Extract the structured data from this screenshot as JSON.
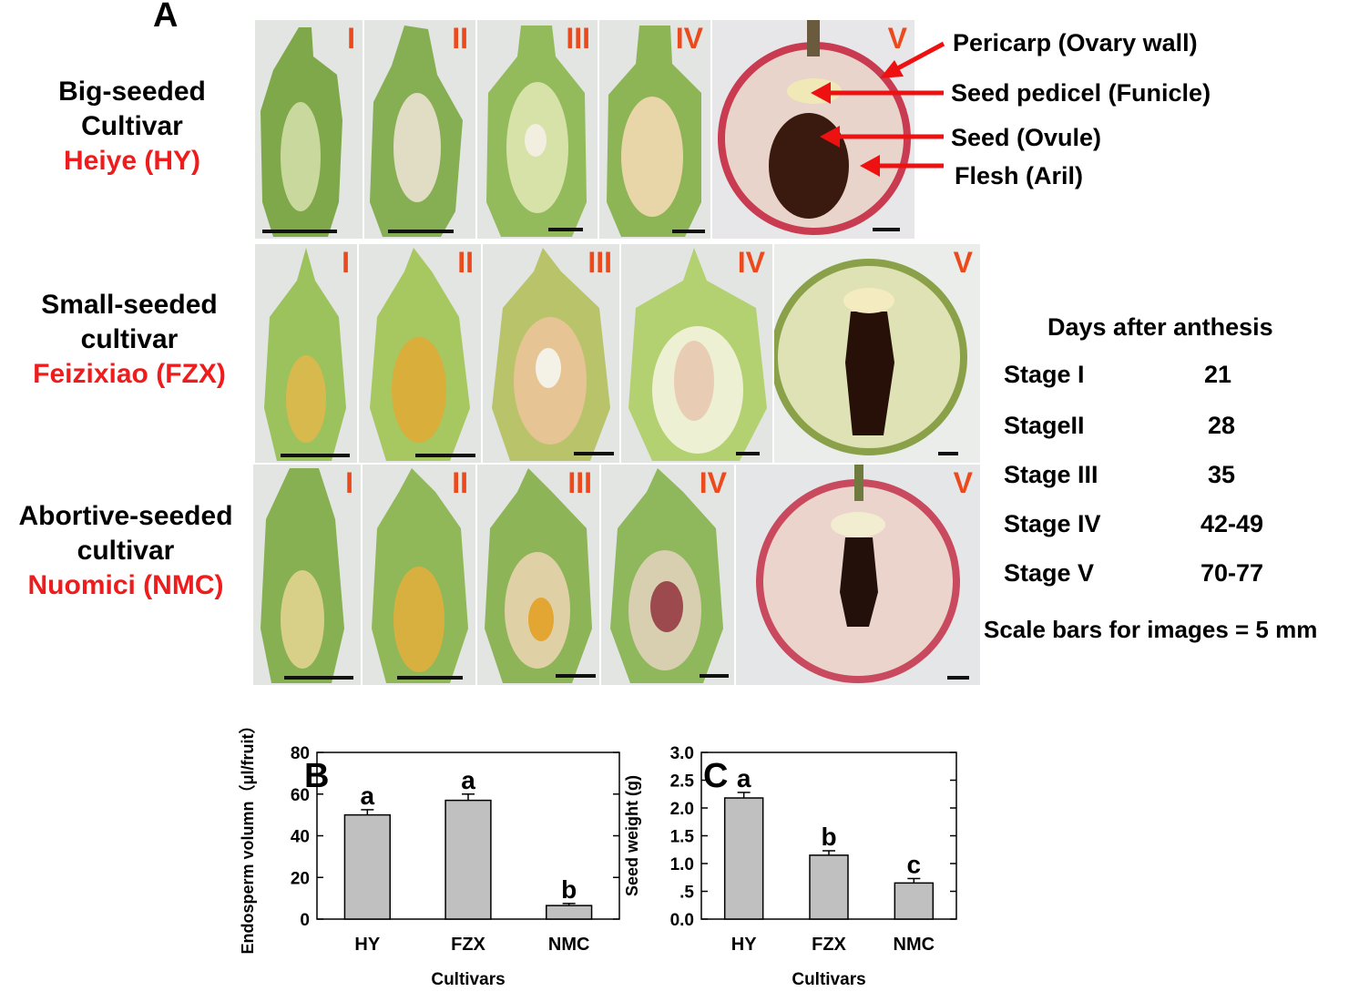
{
  "panel_a": {
    "label": "A",
    "rows": [
      {
        "line1": "Big-seeded",
        "line2": "Cultivar",
        "name": "Heiye (HY)"
      },
      {
        "line1": "Small-seeded",
        "line2": "cultivar",
        "name": "Feizixiao (FZX)"
      },
      {
        "line1": "Abortive-seeded",
        "line2": "cultivar",
        "name": "Nuomici (NMC)"
      }
    ],
    "stage_marks": [
      "I",
      "II",
      "III",
      "IV",
      "V"
    ],
    "annotations": [
      "Pericarp (Ovary wall)",
      "Seed pedicel (Funicle)",
      "Seed (Ovule)",
      "Flesh (Aril)"
    ],
    "stage_table": {
      "title": "Days after anthesis",
      "rows": [
        {
          "stage": "Stage I",
          "days": "21"
        },
        {
          "stage": "StageII",
          "days": "28"
        },
        {
          "stage": "Stage III",
          "days": "35"
        },
        {
          "stage": "Stage IV",
          "days": "42-49"
        },
        {
          "stage": "Stage V",
          "days": "70-77"
        }
      ]
    },
    "scale_note": "Scale bars for images = 5 mm",
    "colors": {
      "label_red": "#ee1c1c",
      "stage_orange": "#ec4a1c",
      "arrow_red": "#ee1111"
    }
  },
  "chart_data": [
    {
      "panel": "B",
      "type": "bar",
      "categories": [
        "HY",
        "FZX",
        "NMC"
      ],
      "values": [
        50,
        57,
        6.5
      ],
      "errors": [
        2.5,
        3,
        1
      ],
      "letters": [
        "a",
        "a",
        "b"
      ],
      "xlabel": "Cultivars",
      "ylabel": "Endosperm volumn（μl/fruit）",
      "ylim": [
        0,
        80
      ],
      "yticks": [
        "0",
        "20",
        "40",
        "60",
        "80"
      ],
      "ytick_values": [
        0,
        20,
        40,
        60,
        80
      ],
      "bar_color": "#c0c0c0"
    },
    {
      "panel": "C",
      "type": "bar",
      "categories": [
        "HY",
        "FZX",
        "NMC"
      ],
      "values": [
        2.18,
        1.15,
        0.65
      ],
      "errors": [
        0.1,
        0.08,
        0.08
      ],
      "letters": [
        "a",
        "b",
        "c"
      ],
      "xlabel": "Cultivars",
      "ylabel": "Seed weight (g)",
      "ylim": [
        0,
        3.0
      ],
      "yticks": [
        "0.0",
        ".5",
        "1.0",
        "1.5",
        "2.0",
        "2.5",
        "3.0"
      ],
      "ytick_values": [
        0,
        0.5,
        1.0,
        1.5,
        2.0,
        2.5,
        3.0
      ],
      "bar_color": "#c0c0c0"
    }
  ]
}
